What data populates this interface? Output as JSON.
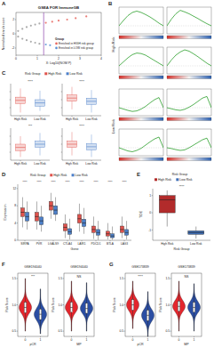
{
  "chart_data": [
    {
      "panel": "A",
      "type": "scatter",
      "title": "GSEA FOR ImmuneGB",
      "x_label": "X: Log10(NOM P)",
      "y_label": "Normalized enrich score",
      "xlim": [
        0,
        4
      ],
      "ylim": [
        -3,
        3
      ],
      "xticks": [
        0,
        1,
        2,
        3,
        4
      ],
      "yticks": [
        -2,
        0,
        2
      ],
      "threshold_x": 1.3,
      "legend_title": "Group",
      "series": [
        {
          "color": "#9e9e9e",
          "x": [
            0.1,
            0.3,
            0.5,
            0.7,
            0.9,
            1.1,
            0.1,
            0.3,
            0.5,
            0.7,
            0.9,
            1.1
          ],
          "values": [
            0.4,
            0.7,
            0.95,
            1.15,
            1.3,
            1.45,
            -0.4,
            -0.7,
            -0.9,
            -1.1,
            -1.25,
            -1.4
          ]
        },
        {
          "name": "Enriched in HIGH risk group",
          "color": "#e8665f",
          "x": [
            1.4,
            1.7,
            2.0,
            2.4,
            2.8,
            3.3
          ],
          "values": [
            1.55,
            1.7,
            1.85,
            2.0,
            2.2,
            2.45
          ]
        },
        {
          "name": "Enriched in LOW risk group",
          "color": "#5b8fd6",
          "x": [
            1.4,
            1.6
          ],
          "values": [
            -1.5,
            -1.6
          ]
        }
      ]
    },
    {
      "panel": "B",
      "type": "line",
      "tick_labels": false,
      "xlim": [
        0,
        10
      ],
      "ylim": [
        -0.3,
        0.7
      ],
      "x": [
        0,
        1,
        2,
        3,
        4,
        5,
        6,
        7,
        8,
        9,
        10
      ],
      "groups": [
        {
          "name": "High Risk",
          "series": [
            {
              "color": "#2ca02c",
              "values": [
                0,
                0.2,
                0.38,
                0.5,
                0.55,
                0.5,
                0.42,
                0.33,
                0.22,
                0.1,
                0
              ]
            },
            {
              "color": "#2ca02c",
              "values": [
                0,
                0.25,
                0.45,
                0.58,
                0.52,
                0.45,
                0.36,
                0.27,
                0.17,
                0.08,
                0
              ]
            },
            {
              "color": "#2ca02c",
              "values": [
                0,
                0.15,
                0.3,
                0.42,
                0.48,
                0.46,
                0.4,
                0.3,
                0.2,
                0.1,
                0
              ]
            },
            {
              "color": "#2ca02c",
              "values": [
                0,
                0.22,
                0.4,
                0.52,
                0.6,
                0.55,
                0.45,
                0.34,
                0.22,
                0.1,
                0
              ]
            }
          ]
        },
        {
          "name": "Low Risk",
          "series": [
            {
              "color": "#2ca02c",
              "values": [
                0,
                -0.05,
                -0.1,
                -0.14,
                -0.12,
                -0.05,
                0.05,
                0.18,
                0.3,
                0.38,
                0
              ]
            },
            {
              "color": "#2ca02c",
              "values": [
                0,
                -0.04,
                -0.08,
                -0.1,
                -0.06,
                0.02,
                0.12,
                0.24,
                0.36,
                0.42,
                0
              ]
            },
            {
              "color": "#2ca02c",
              "values": [
                0,
                -0.06,
                -0.12,
                -0.15,
                -0.1,
                -0.02,
                0.1,
                0.22,
                0.33,
                0.4,
                0
              ]
            },
            {
              "color": "#2ca02c",
              "values": [
                0,
                -0.03,
                -0.07,
                -0.1,
                -0.08,
                0.0,
                0.1,
                0.2,
                0.3,
                0.36,
                0
              ]
            }
          ]
        }
      ]
    },
    {
      "panel": "C",
      "type": "box",
      "legend_title": "Risk Group",
      "categories": [
        "High Risk",
        "Low Risk"
      ],
      "colors": [
        "#e0524c",
        "#4c7fc9"
      ],
      "tick_labels": false,
      "subplots": [
        {
          "annotation": "****",
          "ylim": [
            0,
            1
          ],
          "yticks": [
            0.25,
            0.5,
            0.75
          ],
          "min": [
            0.1,
            0.15
          ],
          "q1": [
            0.38,
            0.3
          ],
          "median": [
            0.48,
            0.4
          ],
          "q3": [
            0.58,
            0.5
          ],
          "max": [
            0.85,
            0.78
          ]
        },
        {
          "annotation": "****",
          "ylim": [
            0,
            1
          ],
          "yticks": [
            0.25,
            0.5,
            0.75
          ],
          "min": [
            0.2,
            0.1
          ],
          "q1": [
            0.45,
            0.35
          ],
          "median": [
            0.55,
            0.45
          ],
          "q3": [
            0.65,
            0.55
          ],
          "max": [
            0.9,
            0.8
          ]
        },
        {
          "annotation": "***",
          "ylim": [
            0,
            1
          ],
          "yticks": [
            0.25,
            0.5,
            0.75
          ],
          "min": [
            0.1,
            0.15
          ],
          "q1": [
            0.3,
            0.4
          ],
          "median": [
            0.4,
            0.5
          ],
          "q3": [
            0.5,
            0.6
          ],
          "max": [
            0.75,
            0.85
          ]
        },
        {
          "annotation": "****",
          "ylim": [
            0,
            1
          ],
          "yticks": [
            0.25,
            0.5,
            0.75
          ],
          "min": [
            0.15,
            0.1
          ],
          "q1": [
            0.4,
            0.32
          ],
          "median": [
            0.5,
            0.42
          ],
          "q3": [
            0.6,
            0.52
          ],
          "max": [
            0.88,
            0.8
          ]
        }
      ]
    },
    {
      "panel": "D",
      "type": "box",
      "x_label": "Gene",
      "y_label": "Expression",
      "legend_title": "Risk Group",
      "categories": [
        "SIRPA",
        "PVR",
        "LGALS9",
        "CTLA4",
        "LAIR1",
        "PDCD1",
        "BTLA",
        "LAG3"
      ],
      "annotations": [
        "****",
        "****",
        "****",
        "****",
        "****",
        "****",
        "****",
        "****"
      ],
      "ylim": [
        0,
        13
      ],
      "yticks": [
        0,
        4,
        8,
        12
      ],
      "series": [
        {
          "name": "High Risk",
          "color": "#e0524c",
          "min": [
            3,
            2.5,
            5,
            0.5,
            2,
            0.3,
            0.2,
            0.5
          ],
          "q1": [
            5.5,
            4.5,
            7,
            2.2,
            4,
            1.8,
            1,
            1.8
          ],
          "median": [
            6.5,
            5.5,
            8,
            3,
            5,
            2.5,
            1.5,
            2.5
          ],
          "q3": [
            7.5,
            6.5,
            9,
            3.8,
            6,
            3.3,
            2.1,
            3.3
          ],
          "max": [
            10,
            9,
            11,
            6,
            8.5,
            5.5,
            4,
            5.5
          ]
        },
        {
          "name": "Low Risk",
          "color": "#4c7fc9",
          "min": [
            2.5,
            2,
            4.5,
            0.2,
            1.5,
            0.1,
            0.1,
            0.2
          ],
          "q1": [
            4.5,
            3.6,
            6,
            1.4,
            3.2,
            1.2,
            0.6,
            1.2
          ],
          "median": [
            5.5,
            4.5,
            7,
            2,
            4,
            1.8,
            1,
            1.8
          ],
          "q3": [
            6.5,
            5.4,
            8,
            2.7,
            4.9,
            2.5,
            1.5,
            2.5
          ],
          "max": [
            9,
            8,
            10,
            5,
            7.5,
            4.5,
            3.2,
            4.5
          ]
        }
      ]
    },
    {
      "panel": "E",
      "type": "box",
      "x_label": "Risk Group",
      "y_label": "TIDE",
      "legend_title": "Risk Group",
      "categories": [
        "High Risk",
        "Low Risk"
      ],
      "colors": [
        "#b22b2b",
        "#3d6db5"
      ],
      "annotation": "****",
      "ylim": [
        -1.6,
        1.4
      ],
      "yticks": [
        -1,
        0,
        1
      ],
      "min": [
        -0.8,
        -1.5
      ],
      "q1": [
        0.0,
        -1.25
      ],
      "median": [
        0.75,
        -1.15
      ],
      "q3": [
        1.0,
        -1.05
      ],
      "max": [
        1.3,
        -0.8
      ]
    },
    {
      "panel": "F",
      "type": "violin",
      "title": "GSE194040",
      "y_label": "Risk Score",
      "categories": [
        "0",
        "1"
      ],
      "colors": [
        "#e3262d",
        "#2b4ea3"
      ],
      "subplots": [
        {
          "x_label": "pCR",
          "annotation": "***",
          "ylim": [
            0.4,
            1.6
          ],
          "yticks": [
            0.5,
            {
              "value": 1,
              "label": "1.0"
            },
            1.5
          ],
          "min": [
            0.5,
            0.45
          ],
          "q1": [
            0.85,
            0.72
          ],
          "median": [
            0.95,
            0.82
          ],
          "q3": [
            1.05,
            0.92
          ],
          "max": [
            1.5,
            1.3
          ]
        },
        {
          "x_label": "MP",
          "annotation": "NS",
          "ylim": [
            0.4,
            1.6
          ],
          "yticks": [
            0.5,
            {
              "value": 1,
              "label": "1.0"
            },
            1.5
          ],
          "min": [
            0.5,
            0.5
          ],
          "q1": [
            0.86,
            0.84
          ],
          "median": [
            0.95,
            0.93
          ],
          "q3": [
            1.05,
            1.03
          ],
          "max": [
            1.45,
            1.42
          ]
        }
      ]
    },
    {
      "panel": "G",
      "type": "violin",
      "title": "GSE173839",
      "y_label": "Risk Score",
      "categories": [
        "0",
        "1"
      ],
      "colors": [
        "#e3262d",
        "#2b4ea3"
      ],
      "subplots": [
        {
          "x_label": "pCR",
          "annotation": "****",
          "ylim": [
            0.4,
            1.6
          ],
          "yticks": [
            0.5,
            {
              "value": 1,
              "label": "1.0"
            },
            1.5
          ],
          "min": [
            0.55,
            0.4
          ],
          "q1": [
            0.9,
            0.7
          ],
          "median": [
            1.0,
            0.8
          ],
          "q3": [
            1.1,
            0.9
          ],
          "max": [
            1.45,
            1.25
          ]
        },
        {
          "x_label": "MP",
          "annotation": "NS",
          "ylim": [
            0.4,
            1.6
          ],
          "yticks": [
            0.5,
            {
              "value": 1,
              "label": "1.0"
            },
            1.5
          ],
          "min": [
            0.5,
            0.5
          ],
          "q1": [
            0.88,
            0.86
          ],
          "median": [
            0.97,
            0.95
          ],
          "q3": [
            1.07,
            1.05
          ],
          "max": [
            1.45,
            1.4
          ]
        }
      ]
    }
  ]
}
